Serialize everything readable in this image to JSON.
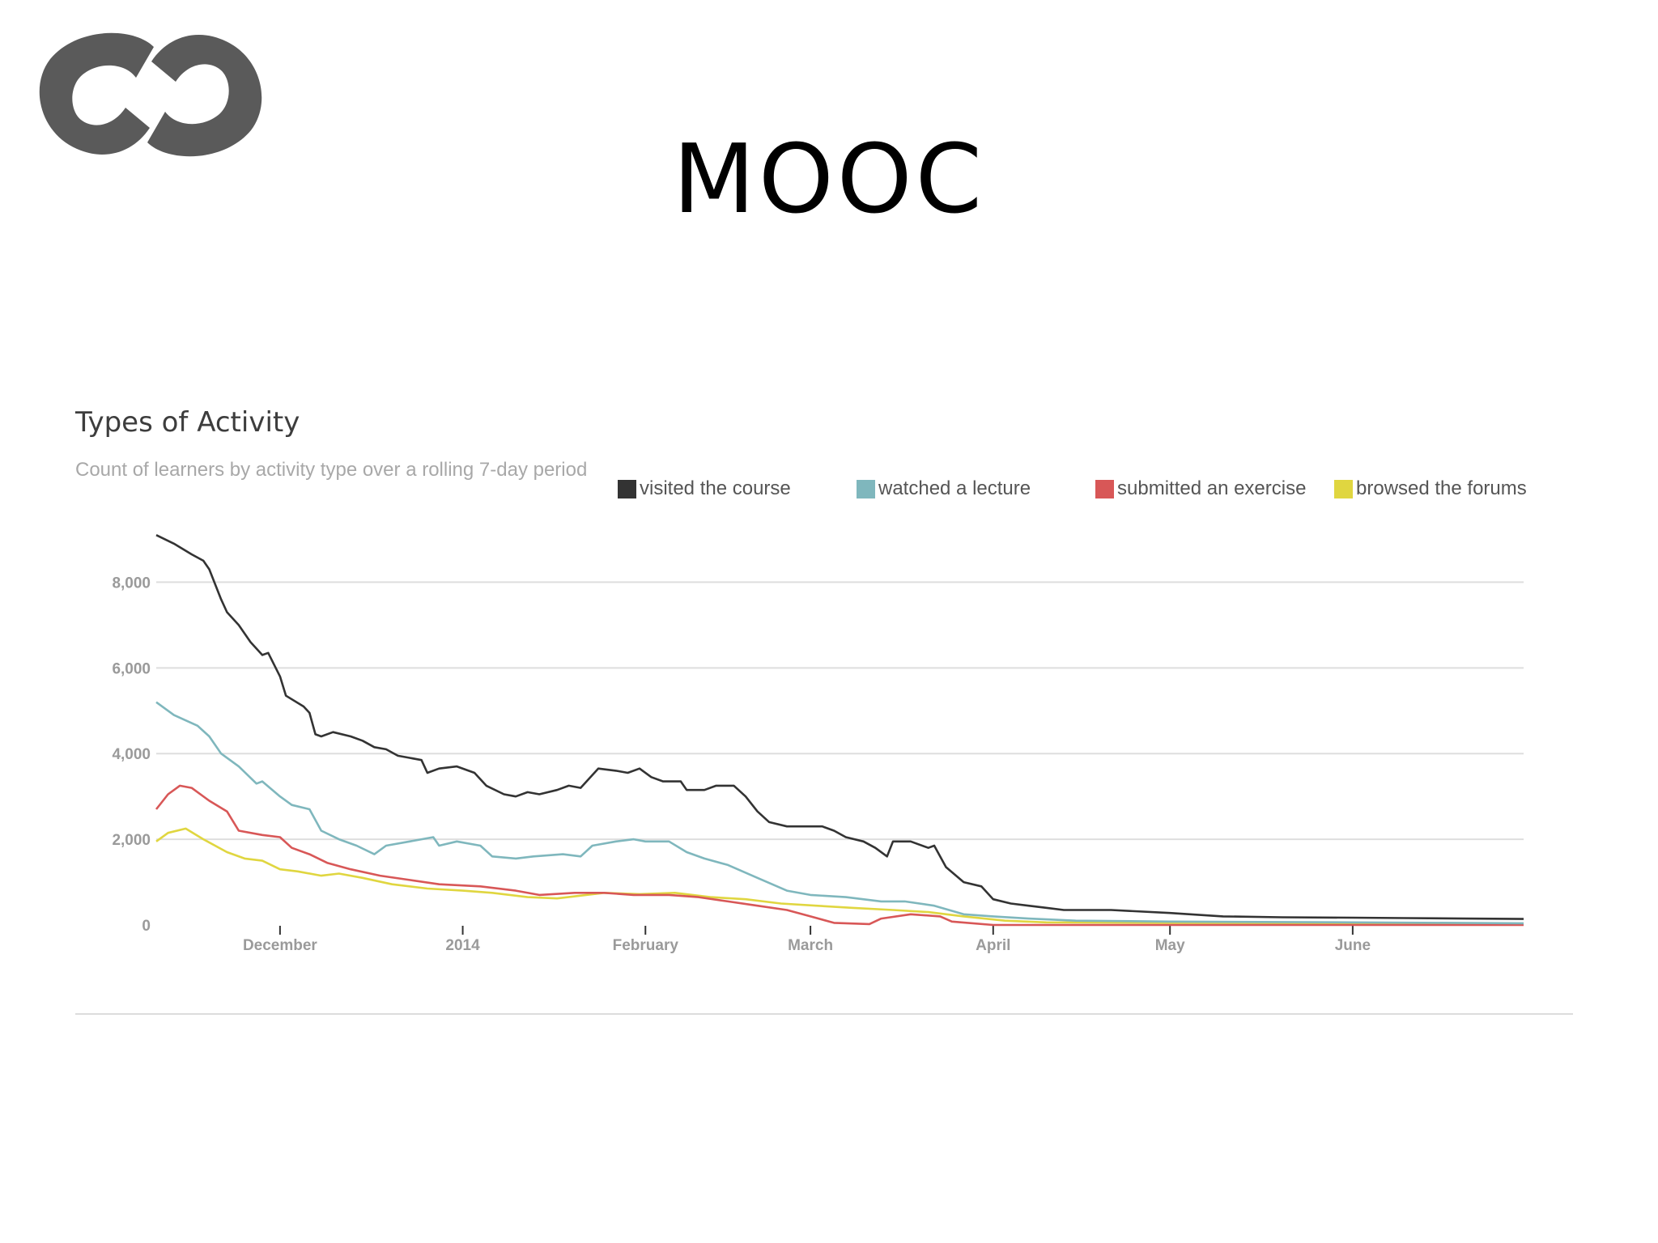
{
  "slide": {
    "title": "MOOC"
  },
  "chart_data": {
    "type": "line",
    "title": "Types of Activity",
    "subtitle": "Count of learners by activity type over a rolling 7-day period",
    "xlabel": "",
    "ylabel": "",
    "ylim": [
      0,
      9500
    ],
    "xlim": [
      "2013-11-10",
      "2014-06-30"
    ],
    "grid": true,
    "legend_position": "top-right",
    "y_ticks": [
      0,
      2000,
      4000,
      6000,
      8000
    ],
    "y_tick_labels": [
      "0",
      "2,000",
      "4,000",
      "6,000",
      "8,000"
    ],
    "x_ticks": [
      "2013-12-01",
      "2014-01-01",
      "2014-02-01",
      "2014-03-01",
      "2014-04-01",
      "2014-05-01",
      "2014-06-01"
    ],
    "x_tick_labels": [
      "December",
      "2014",
      "February",
      "March",
      "April",
      "May",
      "June"
    ],
    "series": [
      {
        "name": "visited the course",
        "color": "#333333",
        "points": [
          [
            "2013-11-10",
            9100
          ],
          [
            "2013-11-13",
            8900
          ],
          [
            "2013-11-16",
            8650
          ],
          [
            "2013-11-18",
            8500
          ],
          [
            "2013-11-19",
            8300
          ],
          [
            "2013-11-21",
            7600
          ],
          [
            "2013-11-22",
            7300
          ],
          [
            "2013-11-24",
            7000
          ],
          [
            "2013-11-26",
            6600
          ],
          [
            "2013-11-28",
            6300
          ],
          [
            "2013-11-29",
            6350
          ],
          [
            "2013-12-01",
            5800
          ],
          [
            "2013-12-02",
            5350
          ],
          [
            "2013-12-05",
            5100
          ],
          [
            "2013-12-06",
            4950
          ],
          [
            "2013-12-07",
            4450
          ],
          [
            "2013-12-08",
            4400
          ],
          [
            "2013-12-10",
            4500
          ],
          [
            "2013-12-13",
            4400
          ],
          [
            "2013-12-15",
            4300
          ],
          [
            "2013-12-17",
            4150
          ],
          [
            "2013-12-19",
            4100
          ],
          [
            "2013-12-21",
            3950
          ],
          [
            "2013-12-23",
            3900
          ],
          [
            "2013-12-25",
            3850
          ],
          [
            "2013-12-26",
            3550
          ],
          [
            "2013-12-28",
            3650
          ],
          [
            "2013-12-31",
            3700
          ],
          [
            "2014-01-03",
            3550
          ],
          [
            "2014-01-05",
            3250
          ],
          [
            "2014-01-08",
            3050
          ],
          [
            "2014-01-10",
            3000
          ],
          [
            "2014-01-12",
            3100
          ],
          [
            "2014-01-14",
            3050
          ],
          [
            "2014-01-17",
            3150
          ],
          [
            "2014-01-19",
            3250
          ],
          [
            "2014-01-21",
            3200
          ],
          [
            "2014-01-23",
            3500
          ],
          [
            "2014-01-24",
            3650
          ],
          [
            "2014-01-27",
            3600
          ],
          [
            "2014-01-29",
            3550
          ],
          [
            "2014-01-31",
            3650
          ],
          [
            "2014-02-02",
            3450
          ],
          [
            "2014-02-04",
            3350
          ],
          [
            "2014-02-07",
            3350
          ],
          [
            "2014-02-08",
            3150
          ],
          [
            "2014-02-11",
            3150
          ],
          [
            "2014-02-13",
            3250
          ],
          [
            "2014-02-16",
            3250
          ],
          [
            "2014-02-18",
            3000
          ],
          [
            "2014-02-20",
            2650
          ],
          [
            "2014-02-22",
            2400
          ],
          [
            "2014-02-25",
            2300
          ],
          [
            "2014-02-28",
            2300
          ],
          [
            "2014-03-03",
            2300
          ],
          [
            "2014-03-05",
            2200
          ],
          [
            "2014-03-07",
            2050
          ],
          [
            "2014-03-10",
            1950
          ],
          [
            "2014-03-12",
            1800
          ],
          [
            "2014-03-14",
            1600
          ],
          [
            "2014-03-15",
            1950
          ],
          [
            "2014-03-18",
            1950
          ],
          [
            "2014-03-21",
            1800
          ],
          [
            "2014-03-22",
            1850
          ],
          [
            "2014-03-24",
            1350
          ],
          [
            "2014-03-27",
            1000
          ],
          [
            "2014-03-30",
            900
          ],
          [
            "2014-04-01",
            600
          ],
          [
            "2014-04-04",
            500
          ],
          [
            "2014-04-07",
            450
          ],
          [
            "2014-04-10",
            400
          ],
          [
            "2014-04-13",
            350
          ],
          [
            "2014-04-17",
            350
          ],
          [
            "2014-04-21",
            350
          ],
          [
            "2014-05-01",
            280
          ],
          [
            "2014-05-10",
            200
          ],
          [
            "2014-05-20",
            180
          ],
          [
            "2014-06-01",
            170
          ],
          [
            "2014-06-10",
            160
          ],
          [
            "2014-06-20",
            150
          ],
          [
            "2014-06-30",
            140
          ]
        ]
      },
      {
        "name": "watched a lecture",
        "color": "#7fb7bd",
        "points": [
          [
            "2013-11-10",
            5200
          ],
          [
            "2013-11-13",
            4900
          ],
          [
            "2013-11-17",
            4650
          ],
          [
            "2013-11-19",
            4400
          ],
          [
            "2013-11-21",
            4000
          ],
          [
            "2013-11-24",
            3700
          ],
          [
            "2013-11-27",
            3300
          ],
          [
            "2013-11-28",
            3350
          ],
          [
            "2013-12-01",
            3000
          ],
          [
            "2013-12-03",
            2800
          ],
          [
            "2013-12-06",
            2700
          ],
          [
            "2013-12-08",
            2200
          ],
          [
            "2013-12-11",
            2000
          ],
          [
            "2013-12-14",
            1850
          ],
          [
            "2013-12-17",
            1650
          ],
          [
            "2013-12-19",
            1850
          ],
          [
            "2013-12-23",
            1950
          ],
          [
            "2013-12-27",
            2050
          ],
          [
            "2013-12-28",
            1850
          ],
          [
            "2013-12-31",
            1950
          ],
          [
            "2014-01-04",
            1850
          ],
          [
            "2014-01-06",
            1600
          ],
          [
            "2014-01-10",
            1550
          ],
          [
            "2014-01-13",
            1600
          ],
          [
            "2014-01-18",
            1650
          ],
          [
            "2014-01-21",
            1600
          ],
          [
            "2014-01-23",
            1850
          ],
          [
            "2014-01-27",
            1950
          ],
          [
            "2014-01-30",
            2000
          ],
          [
            "2014-02-01",
            1950
          ],
          [
            "2014-02-05",
            1950
          ],
          [
            "2014-02-08",
            1700
          ],
          [
            "2014-02-11",
            1550
          ],
          [
            "2014-02-15",
            1400
          ],
          [
            "2014-02-20",
            1100
          ],
          [
            "2014-02-25",
            800
          ],
          [
            "2014-03-01",
            700
          ],
          [
            "2014-03-07",
            650
          ],
          [
            "2014-03-13",
            550
          ],
          [
            "2014-03-17",
            550
          ],
          [
            "2014-03-22",
            450
          ],
          [
            "2014-03-27",
            250
          ],
          [
            "2014-04-01",
            200
          ],
          [
            "2014-04-07",
            150
          ],
          [
            "2014-04-15",
            100
          ],
          [
            "2014-05-01",
            80
          ],
          [
            "2014-06-01",
            60
          ],
          [
            "2014-06-30",
            40
          ]
        ]
      },
      {
        "name": "submitted an exercise",
        "color": "#d85757",
        "points": [
          [
            "2013-11-10",
            2700
          ],
          [
            "2013-11-12",
            3050
          ],
          [
            "2013-11-14",
            3250
          ],
          [
            "2013-11-16",
            3200
          ],
          [
            "2013-11-19",
            2900
          ],
          [
            "2013-11-22",
            2650
          ],
          [
            "2013-11-24",
            2200
          ],
          [
            "2013-11-28",
            2100
          ],
          [
            "2013-12-01",
            2050
          ],
          [
            "2013-12-03",
            1800
          ],
          [
            "2013-12-06",
            1650
          ],
          [
            "2013-12-09",
            1450
          ],
          [
            "2013-12-13",
            1300
          ],
          [
            "2013-12-18",
            1150
          ],
          [
            "2013-12-23",
            1050
          ],
          [
            "2013-12-28",
            950
          ],
          [
            "2014-01-04",
            900
          ],
          [
            "2014-01-10",
            800
          ],
          [
            "2014-01-14",
            700
          ],
          [
            "2014-01-20",
            750
          ],
          [
            "2014-01-25",
            750
          ],
          [
            "2014-01-30",
            700
          ],
          [
            "2014-02-05",
            700
          ],
          [
            "2014-02-10",
            650
          ],
          [
            "2014-02-15",
            550
          ],
          [
            "2014-02-20",
            450
          ],
          [
            "2014-02-25",
            350
          ],
          [
            "2014-03-01",
            200
          ],
          [
            "2014-03-05",
            50
          ],
          [
            "2014-03-11",
            20
          ],
          [
            "2014-03-13",
            150
          ],
          [
            "2014-03-18",
            250
          ],
          [
            "2014-03-23",
            200
          ],
          [
            "2014-03-25",
            80
          ],
          [
            "2014-04-01",
            0
          ],
          [
            "2014-06-30",
            0
          ]
        ]
      },
      {
        "name": "browsed the forums",
        "color": "#e0d640",
        "points": [
          [
            "2013-11-10",
            1950
          ],
          [
            "2013-11-12",
            2150
          ],
          [
            "2013-11-15",
            2250
          ],
          [
            "2013-11-18",
            2000
          ],
          [
            "2013-11-22",
            1700
          ],
          [
            "2013-11-25",
            1550
          ],
          [
            "2013-11-28",
            1500
          ],
          [
            "2013-12-01",
            1300
          ],
          [
            "2013-12-04",
            1250
          ],
          [
            "2013-12-08",
            1150
          ],
          [
            "2013-12-11",
            1200
          ],
          [
            "2013-12-15",
            1100
          ],
          [
            "2013-12-20",
            950
          ],
          [
            "2013-12-26",
            850
          ],
          [
            "2014-01-01",
            800
          ],
          [
            "2014-01-06",
            750
          ],
          [
            "2014-01-12",
            650
          ],
          [
            "2014-01-17",
            620
          ],
          [
            "2014-01-25",
            750
          ],
          [
            "2014-01-31",
            720
          ],
          [
            "2014-02-06",
            750
          ],
          [
            "2014-02-12",
            650
          ],
          [
            "2014-02-18",
            600
          ],
          [
            "2014-02-24",
            500
          ],
          [
            "2014-03-02",
            450
          ],
          [
            "2014-03-08",
            400
          ],
          [
            "2014-03-15",
            350
          ],
          [
            "2014-03-21",
            300
          ],
          [
            "2014-03-27",
            200
          ],
          [
            "2014-04-03",
            100
          ],
          [
            "2014-04-10",
            60
          ],
          [
            "2014-05-01",
            50
          ],
          [
            "2014-06-30",
            30
          ]
        ]
      }
    ]
  }
}
